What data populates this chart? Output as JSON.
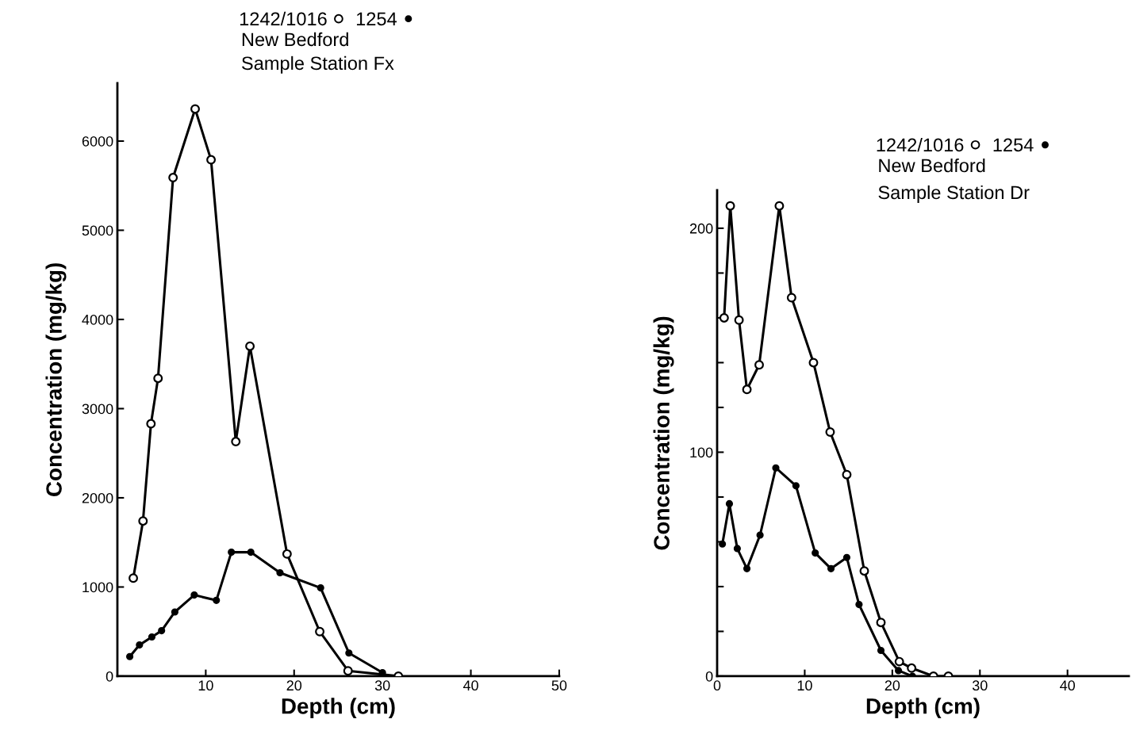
{
  "chart_data": [
    {
      "type": "line",
      "title": "New Bedford",
      "subtitle": "Sample Station Fx",
      "xlabel": "Depth (cm)",
      "ylabel": "Concentration (mg/kg)",
      "legend": "top",
      "marker": "circle",
      "grid": false,
      "xlim": [
        0,
        50
      ],
      "xticks": [
        10,
        20,
        30,
        40,
        50
      ],
      "ylim": [
        0,
        6650
      ],
      "yticks": [
        0,
        1000,
        2000,
        3000,
        4000,
        5000,
        6000
      ],
      "series": [
        {
          "name": "1242/1016",
          "color": "#000000",
          "x": [
            1.8,
            2.9,
            3.8,
            4.6,
            6.3,
            8.8,
            10.6,
            13.4,
            15.0,
            19.2,
            22.9,
            26.1,
            31.8
          ],
          "values": [
            1100,
            1740,
            2830,
            3340,
            5590,
            6360,
            5790,
            2630,
            3700,
            1370,
            500,
            60,
            0
          ]
        },
        {
          "name": "1254",
          "color": "#000000",
          "x": [
            1.4,
            2.5,
            3.9,
            5.0,
            6.5,
            8.7,
            11.2,
            12.9,
            15.1,
            18.4,
            23.0,
            26.2,
            30.0
          ],
          "values": [
            220,
            350,
            440,
            510,
            720,
            910,
            850,
            1390,
            1390,
            1160,
            990,
            260,
            40
          ]
        }
      ]
    },
    {
      "type": "line",
      "title": "New Bedford",
      "subtitle": "Sample Station Dr",
      "xlabel": "Depth (cm)",
      "ylabel": "Concentration (mg/kg)",
      "legend": "top",
      "marker": "circle",
      "grid": false,
      "xlim": [
        0,
        47
      ],
      "xticks": [
        0,
        10,
        20,
        30,
        40
      ],
      "ylim": [
        0,
        217
      ],
      "yticks": [
        0,
        {
          "value": 20,
          "label": null
        },
        {
          "value": 40,
          "label": null
        },
        {
          "value": 60,
          "label": null
        },
        {
          "value": 80,
          "label": null
        },
        100,
        {
          "value": 120,
          "label": null
        },
        {
          "value": 140,
          "label": null
        },
        {
          "value": 160,
          "label": null
        },
        {
          "value": 180,
          "label": null
        },
        200
      ],
      "series": [
        {
          "name": "1242/1016",
          "color": "#000000",
          "x": [
            0.8,
            1.5,
            2.5,
            3.4,
            4.8,
            7.1,
            8.5,
            11.0,
            12.9,
            14.8,
            16.8,
            18.7,
            20.8,
            22.2,
            24.7,
            26.4
          ],
          "values": [
            160,
            210,
            159,
            128,
            139,
            210,
            169,
            140,
            109,
            90,
            47,
            24,
            6.5,
            3.6,
            0,
            0
          ]
        },
        {
          "name": "1254",
          "color": "#000000",
          "x": [
            0.6,
            1.4,
            2.3,
            3.4,
            4.9,
            6.7,
            9.0,
            11.2,
            13.0,
            14.8,
            16.2,
            18.7,
            20.7,
            22.3
          ],
          "values": [
            59,
            77,
            57,
            48,
            63,
            93,
            85,
            55,
            48,
            53,
            32,
            11.5,
            2.5,
            0
          ]
        }
      ]
    }
  ]
}
